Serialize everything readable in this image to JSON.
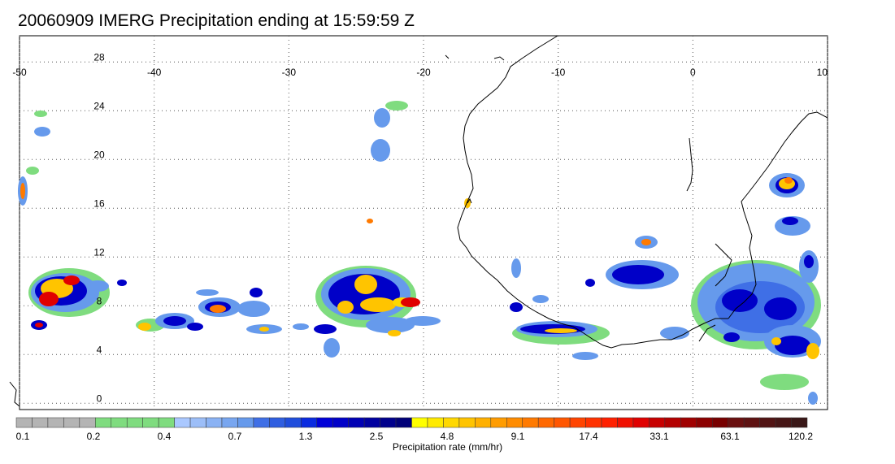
{
  "title": "20060909 IMERG Precipitation ending at 15:59:59 Z",
  "map": {
    "lon_range": [
      -50,
      10
    ],
    "lat_range": [
      -1,
      30
    ],
    "lon_labels": [
      "-50",
      "-40",
      "-30",
      "-20",
      "-10",
      "0",
      "10"
    ],
    "lat_labels": [
      "28",
      "24",
      "20",
      "16",
      "12",
      "8",
      "4",
      "0"
    ],
    "grid": "dotted",
    "coastline_color": "#000000"
  },
  "colorbar": {
    "title": "Precipitation rate (mm/hr)",
    "tick_labels": [
      "0.1",
      "0.2",
      "0.4",
      "0.7",
      "1.3",
      "2.5",
      "4.8",
      "9.1",
      "17.4",
      "33.1",
      "63.1",
      "120.2"
    ],
    "colors": [
      "#b4b4b4",
      "#b4b4b4",
      "#b4b4b4",
      "#b4b4b4",
      "#b4b4b4",
      "#7fdc7f",
      "#7fdc7f",
      "#7fdc7f",
      "#7fdc7f",
      "#7fdc7f",
      "#aac8ff",
      "#9cbef8",
      "#8ab2f4",
      "#78a6f0",
      "#669aec",
      "#3f6fe6",
      "#2f5ee0",
      "#1f4ddc",
      "#0a2be0",
      "#0000d8",
      "#0000c8",
      "#0000b4",
      "#0000a0",
      "#00008c",
      "#000078",
      "#ffff00",
      "#ffea00",
      "#ffd800",
      "#ffc400",
      "#ffb000",
      "#ff9c00",
      "#ff8c00",
      "#ff7a00",
      "#ff6800",
      "#ff5600",
      "#ff4400",
      "#ff3200",
      "#ff2000",
      "#f01000",
      "#e00000",
      "#c80000",
      "#b40000",
      "#a00000",
      "#8c0000",
      "#780000",
      "#6a1010",
      "#5e1212",
      "#521414",
      "#461616",
      "#3a1818"
    ]
  }
}
